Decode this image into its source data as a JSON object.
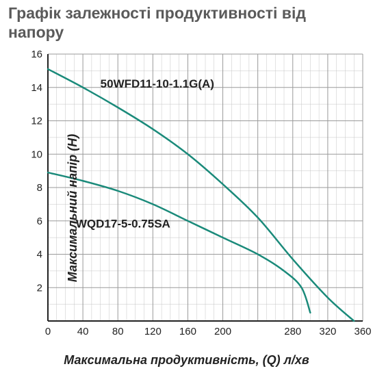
{
  "title": "Графік залежності продуктивності від напору",
  "xlabel": "Максимальна продуктивність, (Q) л/хв",
  "ylabel": "Максимальний напір (Н)",
  "chart": {
    "type": "line",
    "xlim": [
      0,
      360
    ],
    "ylim": [
      0,
      16
    ],
    "xtick_step": 40,
    "xtick_minor_step": 10,
    "ytick_step": 2,
    "ytick_minor_step": 1,
    "xticks_shown": [
      0,
      40,
      80,
      120,
      160,
      200,
      280,
      320,
      360
    ],
    "background_color": "#ffffff",
    "grid_color": "#9a9a9a",
    "grid_minor_color": "#c4c4c4",
    "axis_color": "#222222",
    "tick_fontsize": 15,
    "series": [
      {
        "name": "50WFD11-10-1.1G(A)",
        "label_pos": {
          "x": 60,
          "y": 14
        },
        "color": "#1a8a7a",
        "line_width": 2.5,
        "points": [
          {
            "x": 0,
            "y": 15.1
          },
          {
            "x": 40,
            "y": 14.0
          },
          {
            "x": 80,
            "y": 12.8
          },
          {
            "x": 120,
            "y": 11.5
          },
          {
            "x": 160,
            "y": 10.0
          },
          {
            "x": 200,
            "y": 8.2
          },
          {
            "x": 240,
            "y": 6.2
          },
          {
            "x": 280,
            "y": 3.7
          },
          {
            "x": 320,
            "y": 1.4
          },
          {
            "x": 350,
            "y": 0.0
          }
        ]
      },
      {
        "name": "WQD17-5-0.75SA",
        "label_pos": {
          "x": 32,
          "y": 5.6
        },
        "color": "#1a8a7a",
        "line_width": 2.5,
        "points": [
          {
            "x": 0,
            "y": 8.9
          },
          {
            "x": 40,
            "y": 8.4
          },
          {
            "x": 80,
            "y": 7.8
          },
          {
            "x": 120,
            "y": 7.0
          },
          {
            "x": 160,
            "y": 6.0
          },
          {
            "x": 200,
            "y": 5.0
          },
          {
            "x": 240,
            "y": 4.0
          },
          {
            "x": 270,
            "y": 3.0
          },
          {
            "x": 290,
            "y": 2.0
          },
          {
            "x": 300,
            "y": 0.5
          }
        ]
      }
    ]
  }
}
